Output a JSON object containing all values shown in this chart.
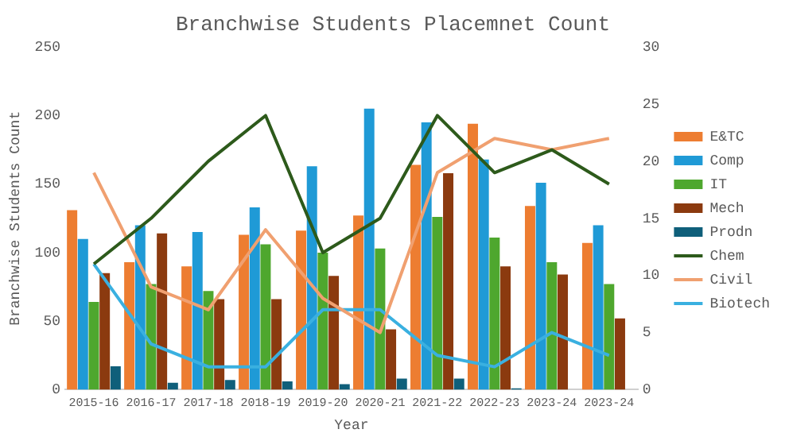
{
  "chart_data": {
    "type": "bar",
    "title": "Branchwise Students Placemnet Count",
    "xlabel": "Year",
    "ylabel": "Branchwise Students Count",
    "categories": [
      "2015-16",
      "2016-17",
      "2017-18",
      "2018-19",
      "2019-20",
      "2020-21",
      "2021-22",
      "2022-23",
      "2023-24",
      "2023-24"
    ],
    "series": [
      {
        "name": "E&TC",
        "color": "#ed7d31",
        "values": [
          131,
          93,
          90,
          113,
          116,
          127,
          164,
          194,
          134,
          107
        ]
      },
      {
        "name": "Comp",
        "color": "#1f9ad6",
        "values": [
          110,
          120,
          115,
          133,
          163,
          205,
          195,
          168,
          151,
          120
        ]
      },
      {
        "name": "IT",
        "color": "#4ea72e",
        "values": [
          64,
          77,
          72,
          106,
          100,
          103,
          126,
          111,
          93,
          77
        ]
      },
      {
        "name": "Mech",
        "color": "#8b3a0f",
        "values": [
          85,
          114,
          66,
          66,
          83,
          44,
          158,
          90,
          84,
          52
        ]
      },
      {
        "name": "Prodn",
        "color": "#0f5f7a",
        "values": [
          17,
          5,
          7,
          6,
          4,
          8,
          8,
          1,
          0,
          0
        ]
      },
      {
        "name": "Chem",
        "type": "line",
        "axis": "y2",
        "color": "#2d5a1b",
        "values": [
          11,
          15,
          20,
          24,
          12,
          15,
          24,
          19,
          21,
          18
        ]
      },
      {
        "name": "Civil",
        "type": "line",
        "axis": "y2",
        "color": "#f0a070",
        "values": [
          19,
          9,
          7,
          14,
          8,
          5,
          19,
          22,
          21,
          22
        ]
      },
      {
        "name": "Biotech",
        "type": "line",
        "axis": "y2",
        "color": "#3ab0e0",
        "values": [
          11,
          4,
          2,
          2,
          7,
          7,
          3,
          2,
          5,
          3
        ]
      }
    ],
    "ylim": [
      0,
      250
    ],
    "yticks": [
      0,
      50,
      100,
      150,
      200,
      250
    ],
    "y2lim": [
      0,
      30
    ],
    "y2ticks": [
      0,
      5,
      10,
      15,
      20,
      25,
      30
    ],
    "grid": false,
    "legend": "right",
    "marker": "none"
  }
}
